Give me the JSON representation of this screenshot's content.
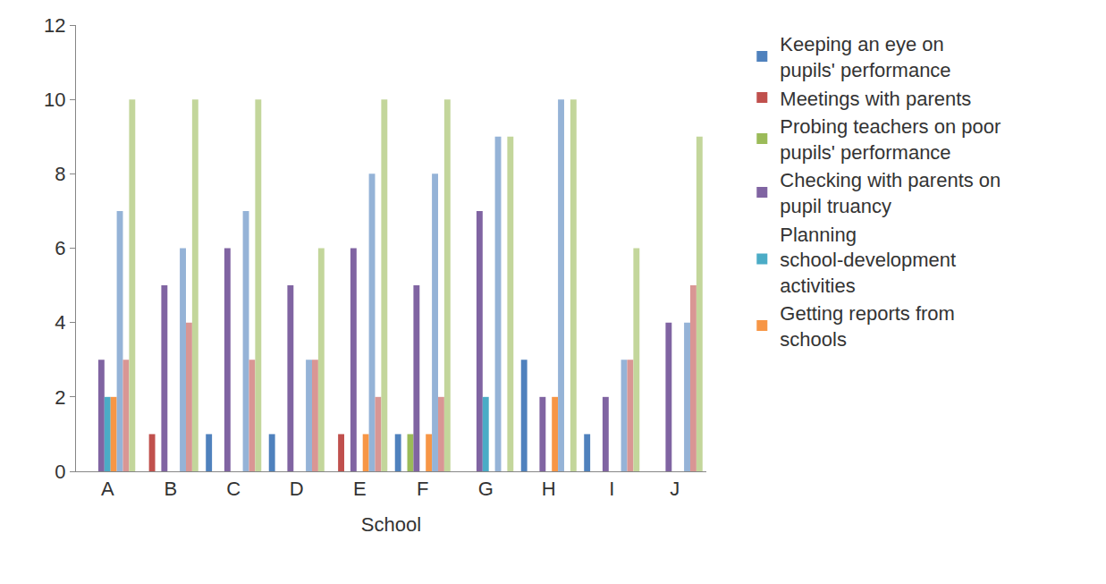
{
  "chart_data": {
    "type": "bar",
    "x_label": "School",
    "categories": [
      "A",
      "B",
      "C",
      "D",
      "E",
      "F",
      "G",
      "H",
      "I",
      "J"
    ],
    "series": [
      {
        "name": "Keeping an eye on pupils' performance",
        "color": "#4F81BD",
        "values": [
          0,
          0,
          1,
          1,
          0,
          1,
          0,
          3,
          1,
          0
        ]
      },
      {
        "name": "Meetings with parents",
        "color": "#C0504D",
        "values": [
          0,
          1,
          0,
          0,
          1,
          0,
          0,
          0,
          0,
          0
        ]
      },
      {
        "name": "Probing teachers on poor pupils' performance",
        "color": "#9BBB59",
        "values": [
          0,
          0,
          0,
          0,
          0,
          1,
          0,
          0,
          0,
          0
        ]
      },
      {
        "name": "Checking with parents on pupil truancy",
        "color": "#8064A2",
        "values": [
          3,
          5,
          6,
          5,
          6,
          5,
          7,
          2,
          2,
          4
        ]
      },
      {
        "name": "Planning school-development activities",
        "color": "#4BACC6",
        "values": [
          2,
          0,
          0,
          0,
          0,
          0,
          2,
          0,
          0,
          0
        ]
      },
      {
        "name": "Getting reports from schools",
        "color": "#F79646",
        "values": [
          2,
          0,
          0,
          0,
          1,
          1,
          0,
          2,
          0,
          0
        ]
      },
      {
        "color": "#95B3D7",
        "values": [
          7,
          6,
          7,
          3,
          8,
          8,
          9,
          10,
          3,
          4
        ]
      },
      {
        "color": "#D99694",
        "values": [
          3,
          4,
          3,
          3,
          2,
          2,
          0,
          0,
          3,
          5
        ]
      },
      {
        "color": "#C3D69B",
        "values": [
          10,
          10,
          10,
          6,
          10,
          10,
          9,
          10,
          6,
          9
        ]
      }
    ],
    "ylim": [
      0,
      12
    ],
    "yticks": [
      0,
      2,
      4,
      6,
      8,
      10,
      12
    ],
    "grid": false,
    "legend": "right"
  }
}
